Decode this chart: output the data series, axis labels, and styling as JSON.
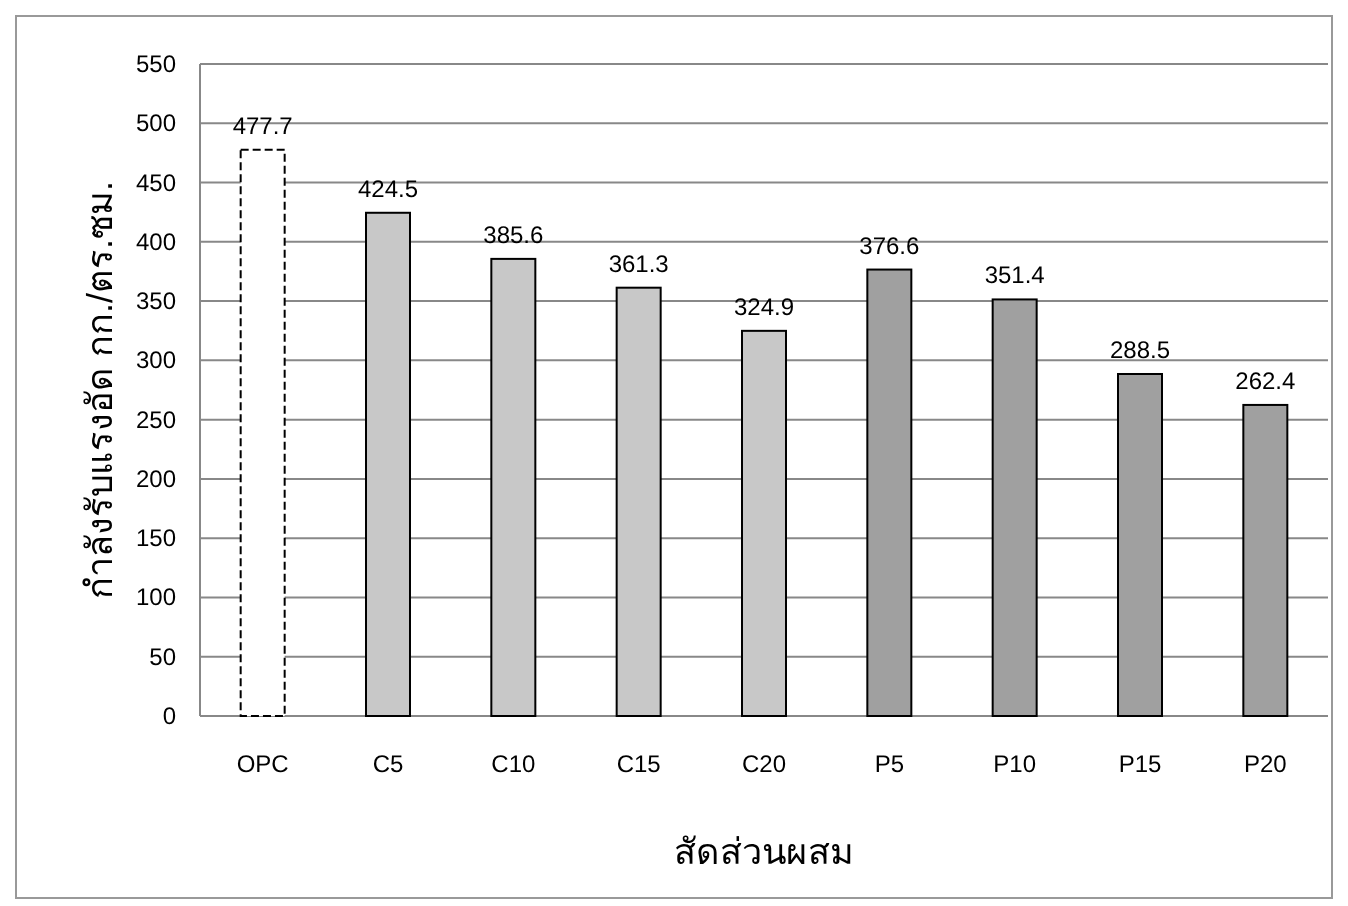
{
  "chart_data": {
    "type": "bar",
    "xlabel": "สัดส่วนผสม",
    "ylabel": "กำลังรับแรงอัด กก./ตร.ซม.",
    "categories": [
      "OPC",
      "C5",
      "C10",
      "C15",
      "C20",
      "P5",
      "P10",
      "P15",
      "P20"
    ],
    "values": [
      477.7,
      424.5,
      385.6,
      361.3,
      324.9,
      376.6,
      351.4,
      288.5,
      262.4
    ],
    "colors": [
      "#ffffff",
      "#c8c8c8",
      "#c8c8c8",
      "#c8c8c8",
      "#c8c8c8",
      "#a0a0a0",
      "#a0a0a0",
      "#a0a0a0",
      "#a0a0a0"
    ],
    "ylim": [
      0,
      550
    ],
    "yticks": [
      0,
      50,
      100,
      150,
      200,
      250,
      300,
      350,
      400,
      450,
      500,
      550
    ],
    "grid": "y",
    "data_labels": true
  }
}
